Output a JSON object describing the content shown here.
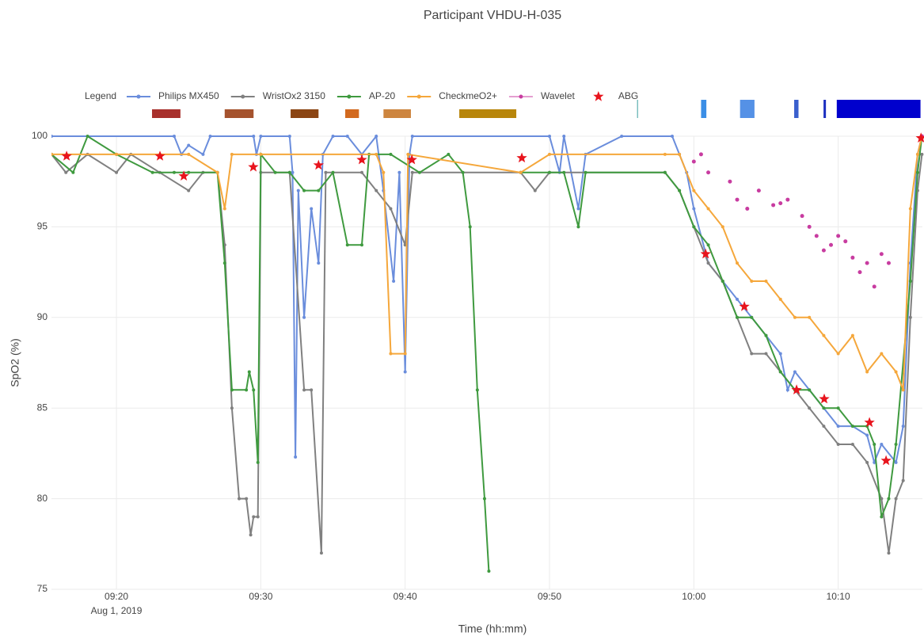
{
  "chart_data": {
    "type": "line",
    "title": "Participant VHDU-H-035",
    "x_label": "Time (hh:mm)",
    "y_label": "SpO2 (%)",
    "legend_title": "Legend",
    "legend_position": "top",
    "xlim": [
      "09:15:30",
      "10:15:50"
    ],
    "ylim": [
      75,
      100
    ],
    "xticks": [
      {
        "value": "09:20:00",
        "label": "09:20"
      },
      {
        "value": "09:30:00",
        "label": "09:30"
      },
      {
        "value": "09:40:00",
        "label": "09:40"
      },
      {
        "value": "09:50:00",
        "label": "09:50"
      },
      {
        "value": "10:00:00",
        "label": "10:00"
      },
      {
        "value": "10:10:00",
        "label": "10:10"
      }
    ],
    "x_date_label": "Aug 1, 2019",
    "yticks": [
      75,
      80,
      85,
      90,
      95,
      100
    ],
    "grid": true,
    "series": [
      {
        "name": "Philips MX450",
        "color": "#6a8ddc",
        "mode": "lines+markers",
        "x": [
          "09:15:30",
          "09:24:00",
          "09:24:30",
          "09:25:00",
          "09:26:00",
          "09:26:30",
          "09:29:30",
          "09:29:42",
          "09:30:00",
          "09:32:00",
          "09:32:12",
          "09:32:24",
          "09:32:36",
          "09:33:00",
          "09:33:30",
          "09:34:00",
          "09:34:18",
          "09:35:00",
          "09:36:00",
          "09:37:00",
          "09:38:00",
          "09:38:30",
          "09:39:12",
          "09:39:36",
          "09:40:00",
          "09:40:18",
          "09:40:30",
          "09:50:00",
          "09:50:42",
          "09:51:00",
          "09:52:00",
          "09:52:30",
          "09:55:00",
          "09:58:30",
          "09:59:00",
          "09:59:30",
          "10:00:00",
          "10:01:00",
          "10:02:00",
          "10:03:00",
          "10:04:00",
          "10:05:00",
          "10:06:00",
          "10:06:30",
          "10:07:00",
          "10:08:00",
          "10:09:00",
          "10:10:00",
          "10:11:00",
          "10:12:00",
          "10:12:30",
          "10:13:00",
          "10:14:00",
          "10:14:30",
          "10:15:00",
          "10:15:30",
          "10:15:48"
        ],
        "values": [
          100,
          100,
          99,
          99.5,
          99,
          100,
          100,
          99,
          100,
          100,
          98,
          82.3,
          97,
          90,
          96,
          93,
          99,
          100,
          100,
          99,
          100,
          97,
          92,
          98,
          87,
          99,
          100,
          100,
          98,
          100,
          96,
          99,
          100,
          100,
          99,
          98,
          96,
          93,
          92,
          91,
          90,
          89,
          88,
          86,
          87,
          86,
          85,
          84,
          84,
          83.5,
          82,
          83,
          82,
          84,
          93,
          99,
          100
        ]
      },
      {
        "name": "WristOx2 3150",
        "color": "#808080",
        "mode": "lines+markers",
        "x": [
          "09:15:30",
          "09:16:30",
          "09:18:00",
          "09:20:00",
          "09:21:00",
          "09:23:00",
          "09:25:00",
          "09:26:00",
          "09:27:00",
          "09:27:30",
          "09:28:00",
          "09:28:30",
          "09:29:00",
          "09:29:18",
          "09:29:30",
          "09:29:48",
          "09:30:00",
          "09:32:00",
          "09:33:00",
          "09:33:30",
          "09:34:12",
          "09:34:30",
          "09:37:00",
          "09:38:00",
          "09:39:00",
          "09:40:00",
          "09:40:30",
          "09:48:00",
          "09:49:00",
          "09:50:00",
          "09:58:00",
          "09:59:00",
          "10:00:00",
          "10:01:00",
          "10:02:00",
          "10:03:00",
          "10:04:00",
          "10:05:00",
          "10:06:00",
          "10:07:00",
          "10:08:00",
          "10:09:00",
          "10:10:00",
          "10:11:00",
          "10:12:00",
          "10:13:00",
          "10:13:30",
          "10:14:00",
          "10:14:30",
          "10:15:00",
          "10:15:30",
          "10:15:48"
        ],
        "values": [
          99,
          98,
          99,
          98,
          99,
          98,
          97,
          98,
          98,
          94,
          85,
          80,
          80,
          78,
          79,
          79,
          98,
          98,
          86,
          86,
          77,
          98,
          98,
          97,
          96,
          94,
          98,
          98,
          97,
          98,
          98,
          97,
          95,
          93,
          92,
          90,
          88,
          88,
          87,
          86,
          85,
          84,
          83,
          83,
          82,
          80,
          77,
          80,
          81,
          90,
          97,
          99
        ]
      },
      {
        "name": "AP-20",
        "color": "#3f9a3f",
        "mode": "lines+markers",
        "x": [
          "09:15:30",
          "09:17:00",
          "09:18:00",
          "09:20:00",
          "09:22:30",
          "09:24:00",
          "09:25:00",
          "09:27:00",
          "09:27:30",
          "09:28:00",
          "09:29:00",
          "09:29:12",
          "09:29:30",
          "09:29:48",
          "09:30:00",
          "09:31:00",
          "09:32:00",
          "09:33:00",
          "09:34:00",
          "09:35:00",
          "09:36:00",
          "09:37:00",
          "09:37:30",
          "09:39:00",
          "09:41:00",
          "09:43:00",
          "09:44:00",
          "09:44:30",
          "09:45:00",
          "09:45:30",
          "09:45:48",
          "09:46:00",
          "09:48:00",
          "09:50:00",
          "09:51:00",
          "09:52:00",
          "09:52:30",
          "09:58:00",
          "09:59:00",
          "10:00:00",
          "10:01:00",
          "10:02:00",
          "10:03:00",
          "10:04:00",
          "10:05:00",
          "10:06:00",
          "10:07:00",
          "10:08:00",
          "10:09:00",
          "10:10:00",
          "10:11:00",
          "10:12:00",
          "10:12:30",
          "10:13:00",
          "10:13:30",
          "10:14:00",
          "10:15:00",
          "10:15:30",
          "10:15:48"
        ],
        "values": [
          99,
          98,
          100,
          99,
          98,
          98,
          98,
          98,
          93,
          86,
          86,
          87,
          86,
          82,
          99,
          98,
          98,
          97,
          97,
          98,
          94,
          94,
          99,
          99,
          98,
          99,
          98,
          95,
          86,
          80,
          76,
          null,
          98,
          98,
          98,
          95,
          98,
          98,
          97,
          95,
          94,
          92,
          90,
          90,
          89,
          87,
          86,
          86,
          85,
          85,
          84,
          84,
          83,
          79,
          80,
          83,
          92,
          98,
          100
        ]
      },
      {
        "name": "CheckmeO2+",
        "color": "#f5a73b",
        "mode": "lines+markers",
        "x": [
          "09:15:30",
          "09:20:00",
          "09:25:00",
          "09:27:00",
          "09:27:30",
          "09:28:00",
          "09:30:00",
          "09:38:00",
          "09:38:30",
          "09:39:00",
          "09:40:00",
          "09:40:12",
          "09:48:00",
          "09:50:00",
          "09:58:00",
          "09:59:00",
          "10:00:00",
          "10:01:00",
          "10:02:00",
          "10:03:00",
          "10:04:00",
          "10:05:00",
          "10:06:00",
          "10:07:00",
          "10:08:00",
          "10:09:00",
          "10:10:00",
          "10:11:00",
          "10:12:00",
          "10:13:00",
          "10:14:00",
          "10:14:30",
          "10:15:00",
          "10:15:30",
          "10:15:48"
        ],
        "values": [
          99,
          99,
          99,
          98,
          96,
          99,
          99,
          99,
          98,
          88,
          88,
          99,
          98,
          99,
          99,
          99,
          97,
          96,
          95,
          93,
          92,
          92,
          91,
          90,
          90,
          89,
          88,
          89,
          87,
          88,
          87,
          86,
          96,
          99,
          100
        ]
      },
      {
        "name": "Wavelet",
        "color": "#c83ca0",
        "mode": "markers",
        "x": [
          "10:00:00",
          "10:00:30",
          "10:01:00",
          "10:02:30",
          "10:03:00",
          "10:03:42",
          "10:04:30",
          "10:05:30",
          "10:06:00",
          "10:06:30",
          "10:07:30",
          "10:08:00",
          "10:08:30",
          "10:09:00",
          "10:09:30",
          "10:10:00",
          "10:10:30",
          "10:11:00",
          "10:11:30",
          "10:12:00",
          "10:12:30",
          "10:13:00",
          "10:13:30",
          "10:15:48"
        ],
        "values": [
          98.6,
          99,
          98,
          97.5,
          96.5,
          96,
          97,
          96.2,
          96.3,
          96.5,
          95.6,
          95,
          94.5,
          93.7,
          94,
          94.5,
          94.2,
          93.3,
          92.5,
          93,
          91.7,
          93.5,
          93,
          100
        ]
      },
      {
        "name": "ABG",
        "color": "#e8141d",
        "mode": "stars",
        "x": [
          "09:16:33",
          "09:23:01",
          "09:24:40",
          "09:29:29",
          "09:34:00",
          "09:37:00",
          "09:40:28",
          "09:48:05",
          "10:00:49",
          "10:03:30",
          "10:07:07",
          "10:09:02",
          "10:12:10",
          "10:13:19",
          "10:15:44"
        ],
        "values": [
          98.9,
          98.9,
          97.8,
          98.3,
          98.4,
          98.7,
          98.7,
          98.8,
          93.5,
          90.6,
          86.0,
          85.5,
          84.2,
          82.1,
          99.9
        ]
      }
    ],
    "event_bands": [
      {
        "start": "09:22:28",
        "end": "09:24:26",
        "color": "#a8302c"
      },
      {
        "start": "09:27:30",
        "end": "09:29:30",
        "color": "#a5532e"
      },
      {
        "start": "09:32:04",
        "end": "09:34:00",
        "color": "#8b4513"
      },
      {
        "start": "09:35:51",
        "end": "09:36:48",
        "color": "#d2691e"
      },
      {
        "start": "09:38:30",
        "end": "09:40:24",
        "color": "#cd853f"
      },
      {
        "start": "09:43:45",
        "end": "09:47:42",
        "color": "#b8860b"
      }
    ],
    "status_bands": [
      {
        "start": "09:56:04",
        "end": "09:56:08",
        "color": "#5fb0b0"
      },
      {
        "start": "10:00:30",
        "end": "10:00:52",
        "color": "#3b8ee6"
      },
      {
        "start": "10:03:12",
        "end": "10:04:12",
        "color": "#5591e6"
      },
      {
        "start": "10:06:57",
        "end": "10:07:15",
        "color": "#3a5fcd"
      },
      {
        "start": "10:08:59",
        "end": "10:09:09",
        "color": "#1c2fc0"
      },
      {
        "start": "10:09:54",
        "end": "10:15:42",
        "color": "#0000cd"
      }
    ]
  }
}
